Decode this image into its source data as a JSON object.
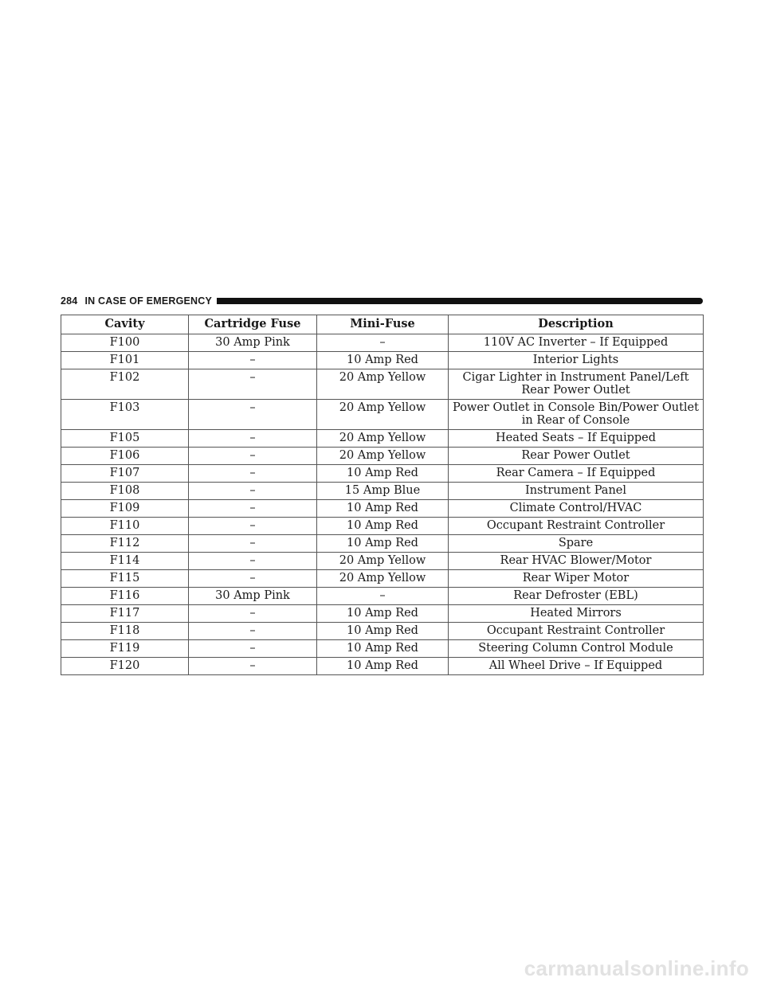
{
  "header": {
    "page_number": "284",
    "section_title": "IN CASE OF EMERGENCY"
  },
  "table": {
    "columns": [
      "Cavity",
      "Cartridge Fuse",
      "Mini-Fuse",
      "Description"
    ],
    "rows": [
      [
        "F100",
        "30 Amp Pink",
        "–",
        "110V AC Inverter – If Equipped"
      ],
      [
        "F101",
        "–",
        "10 Amp Red",
        "Interior Lights"
      ],
      [
        "F102",
        "–",
        "20 Amp Yellow",
        "Cigar Lighter in Instrument Panel/Left Rear Power Outlet"
      ],
      [
        "F103",
        "–",
        "20 Amp Yellow",
        "Power Outlet in Console Bin/Power Outlet in Rear of Console"
      ],
      [
        "F105",
        "–",
        "20 Amp Yellow",
        "Heated Seats – If Equipped"
      ],
      [
        "F106",
        "–",
        "20 Amp Yellow",
        "Rear Power Outlet"
      ],
      [
        "F107",
        "–",
        "10 Amp Red",
        "Rear Camera – If Equipped"
      ],
      [
        "F108",
        "–",
        "15 Amp Blue",
        "Instrument Panel"
      ],
      [
        "F109",
        "–",
        "10 Amp Red",
        "Climate Control/HVAC"
      ],
      [
        "F110",
        "–",
        "10 Amp Red",
        "Occupant Restraint Controller"
      ],
      [
        "F112",
        "–",
        "10 Amp Red",
        "Spare"
      ],
      [
        "F114",
        "–",
        "20 Amp Yellow",
        "Rear HVAC Blower/Motor"
      ],
      [
        "F115",
        "–",
        "20 Amp Yellow",
        "Rear Wiper Motor"
      ],
      [
        "F116",
        "30 Amp Pink",
        "–",
        "Rear Defroster (EBL)"
      ],
      [
        "F117",
        "–",
        "10 Amp Red",
        "Heated Mirrors"
      ],
      [
        "F118",
        "–",
        "10 Amp Red",
        "Occupant Restraint Controller"
      ],
      [
        "F119",
        "–",
        "10 Amp Red",
        "Steering Column Control Module"
      ],
      [
        "F120",
        "–",
        "10 Amp Red",
        "All Wheel Drive – If Equipped"
      ]
    ]
  },
  "watermark": "carmanualsonline.info"
}
